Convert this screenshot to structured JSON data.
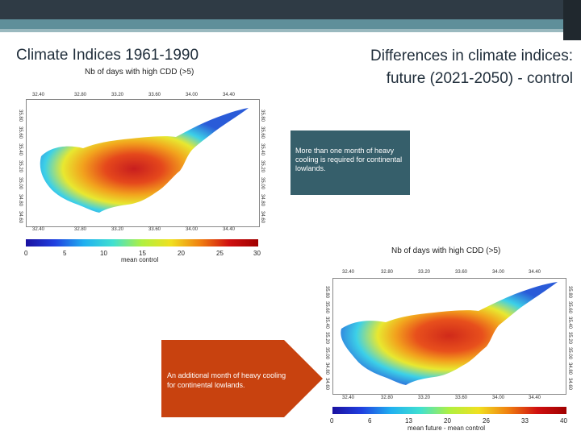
{
  "slide": {
    "title_left": "Climate Indices 1961-1990",
    "title_right_line1": "Differences in climate indices:",
    "title_right_line2": "future (2021-2050) - control"
  },
  "map1": {
    "title": "Nb of days with high CDD (>5)",
    "top_lon_labels": [
      "32.40",
      "32.80",
      "33.20",
      "33.60",
      "34.00",
      "34.40"
    ],
    "bottom_lon_labels": [
      "32.40",
      "32.80",
      "33.20",
      "33.60",
      "34.00",
      "34.40"
    ],
    "left_lat_labels": [
      "35.80",
      "35.60",
      "35.40",
      "35.20",
      "35.00",
      "34.80",
      "34.60"
    ],
    "right_lat_labels": [
      "35.80",
      "35.60",
      "35.40",
      "35.20",
      "35.00",
      "34.80",
      "34.60"
    ],
    "colorbar_ticks": [
      "0",
      "5",
      "10",
      "15",
      "20",
      "25",
      "30"
    ],
    "colorbar_label": "mean control"
  },
  "map2": {
    "title": "Nb of days with high CDD (>5)",
    "top_lon_labels": [
      "32.40",
      "32.80",
      "33.20",
      "33.60",
      "34.00",
      "34.40"
    ],
    "bottom_lon_labels": [
      "32.40",
      "32.80",
      "33.20",
      "33.60",
      "34.00",
      "34.40"
    ],
    "left_lat_labels": [
      "35.80",
      "35.60",
      "35.40",
      "35.20",
      "35.00",
      "34.80",
      "34.60"
    ],
    "right_lat_labels": [
      "35.80",
      "35.60",
      "35.40",
      "35.20",
      "35.00",
      "34.80",
      "34.60"
    ],
    "colorbar_ticks": [
      "0",
      "6",
      "13",
      "20",
      "26",
      "33",
      "40"
    ],
    "colorbar_label": "mean future - mean control"
  },
  "callouts": {
    "teal": "More than one month of heavy cooling is required for continental lowlands.",
    "orange": "An additional month of heavy cooling for continental lowlands."
  },
  "colors": {
    "teal_callout": "#365f6b",
    "orange_callout": "#c8420f",
    "header_dark": "#2f3b45",
    "header_accent": "#5f8f9a"
  }
}
